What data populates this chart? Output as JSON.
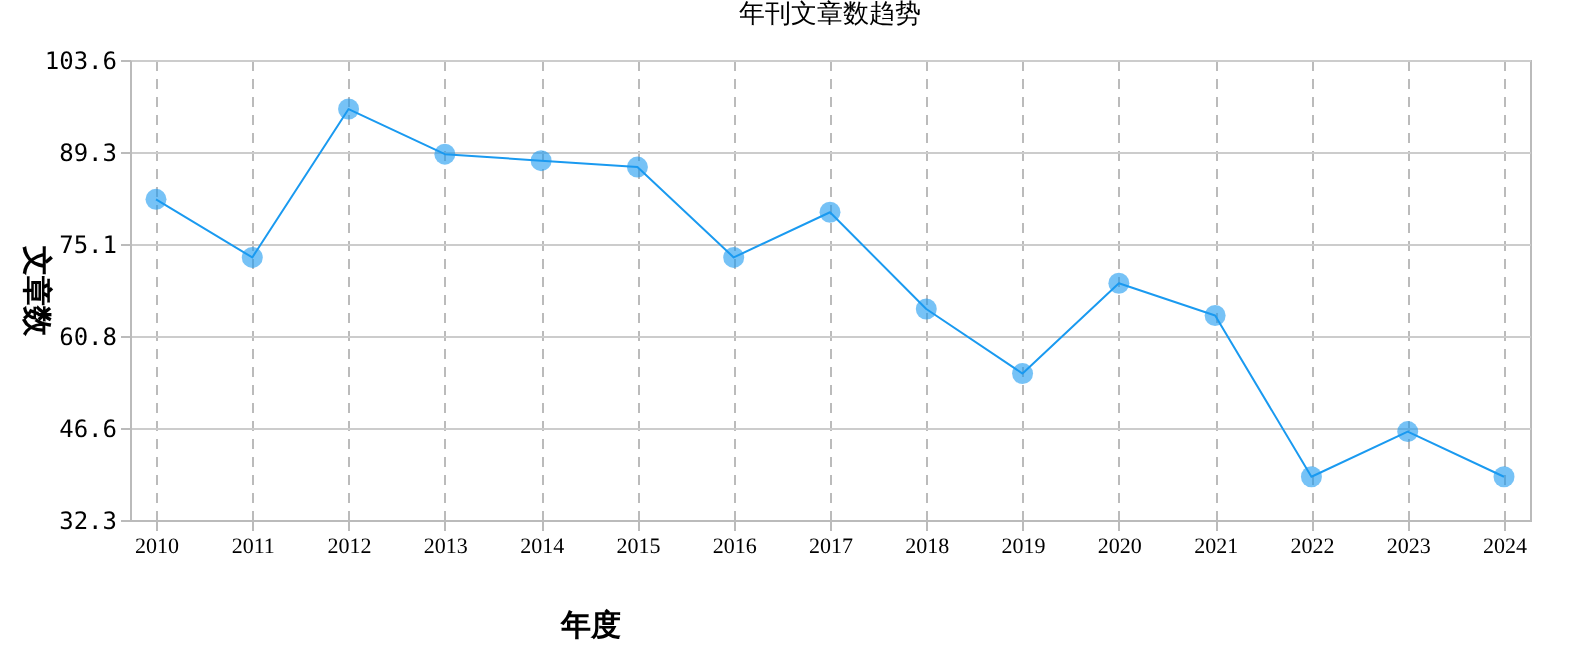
{
  "chart_data": {
    "type": "line",
    "title": "年刊文章数趋势",
    "xlabel": "年度",
    "ylabel": "文章数",
    "categories": [
      "2010",
      "2011",
      "2012",
      "2013",
      "2014",
      "2015",
      "2016",
      "2017",
      "2018",
      "2019",
      "2020",
      "2021",
      "2022",
      "2023",
      "2024"
    ],
    "series": [
      {
        "color": "#1a9af0",
        "values": [
          82,
          73,
          96,
          89,
          88,
          87,
          73,
          80,
          65,
          55,
          69,
          64,
          39,
          46,
          39
        ]
      }
    ],
    "ylim": [
      32.3,
      103.6
    ],
    "yticks": [
      32.3,
      46.6,
      60.8,
      75.1,
      89.3,
      103.6
    ],
    "grid": true,
    "marker": "circle",
    "line_style": "solid",
    "legend": false
  }
}
